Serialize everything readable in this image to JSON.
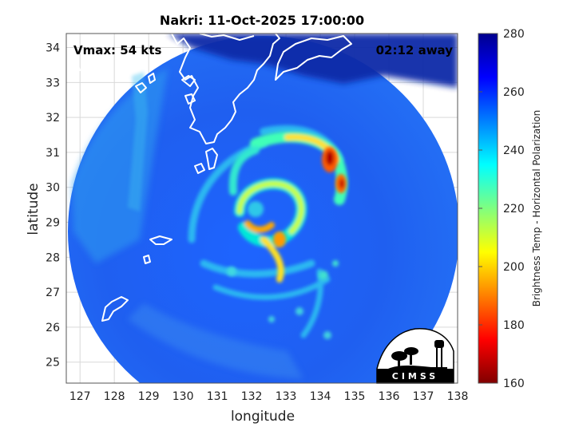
{
  "title": "Nakri: 11-Oct-2025 17:00:00",
  "vmax_label": "Vmax: 54 kts",
  "away_label": "02:12 away",
  "logo_text": "CIMSS",
  "axes": {
    "xlabel": "longitude",
    "ylabel": "latitude",
    "xlim": [
      126.6,
      138.0
    ],
    "ylim": [
      24.4,
      34.4
    ],
    "xticks": [
      "127",
      "128",
      "129",
      "130",
      "131",
      "132",
      "133",
      "134",
      "135",
      "136",
      "137",
      "138"
    ],
    "yticks": [
      "25",
      "26",
      "27",
      "28",
      "29",
      "30",
      "31",
      "32",
      "33",
      "34"
    ],
    "grid": true
  },
  "colorbar": {
    "label": "Brightness Temp - Horizontal Polarization",
    "range": [
      160,
      280
    ],
    "ticks": [
      "280",
      "260",
      "240",
      "220",
      "200",
      "180",
      "160"
    ],
    "colormap": "jet"
  },
  "storm": {
    "name": "Nakri",
    "center_lon": 132.2,
    "center_lat": 29.2,
    "swath_center_lon": 132.4,
    "swath_center_lat": 28.9,
    "colors": {
      "background": "#2a5ee0",
      "cold_core": "#b00000",
      "land_outline": "#ffffff"
    }
  }
}
